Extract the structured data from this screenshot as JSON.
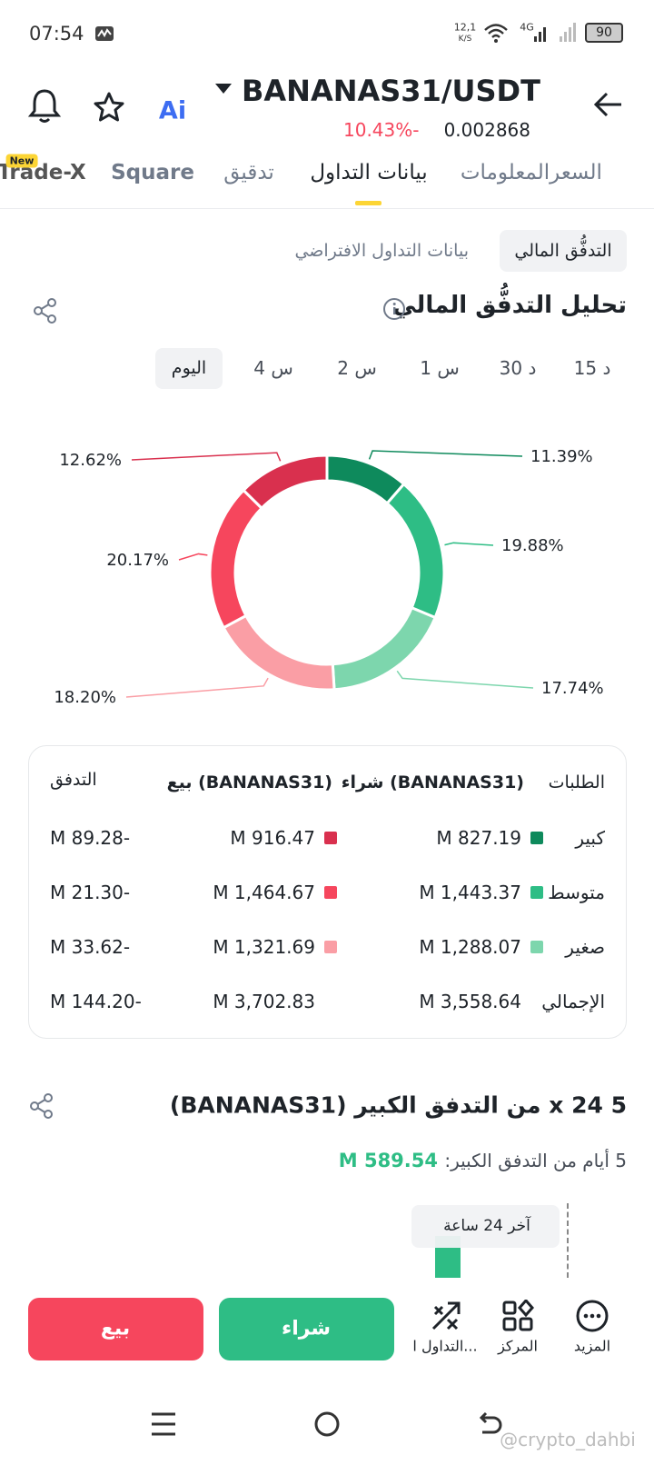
{
  "status_bar": {
    "time": "07:54",
    "speed": "12,1",
    "speed_unit": "K/S",
    "network": "4G",
    "battery": "90"
  },
  "header": {
    "title": "BANANAS31/USDT",
    "change": "10.43%-",
    "price": "0.002868",
    "ai": "Ai"
  },
  "tabs": [
    "السعر",
    "المعلومات",
    "بيانات التداول",
    "تدقيق",
    "Square",
    "Trade-X"
  ],
  "new_badge": "New",
  "sub_tabs": [
    "التدفُّق المالي",
    "بيانات التداول الافتراضي"
  ],
  "section_title": "تحليل التدفُّق المالي",
  "timeframes": [
    "15 د",
    "30 د",
    "1 س",
    "2 س",
    "4 س",
    "اليوم"
  ],
  "donut": {
    "values": [
      11.39,
      19.88,
      17.74,
      18.2,
      20.17,
      12.62
    ],
    "value_labels": [
      "11.39%",
      "19.88%",
      "17.74%",
      "18.20%",
      "20.17%",
      "12.62%"
    ],
    "colors": [
      "#0e8a5c",
      "#2ebd85",
      "#7dd6ad",
      "#fa9ea5",
      "#f6465d",
      "#d9304e"
    ]
  },
  "table": {
    "header": [
      "الطلبات",
      "شراء (BANANAS31)",
      "بيع (BANANAS31)",
      "التدفق"
    ],
    "rows": [
      [
        "كبير",
        "M 827.19",
        "M 916.47",
        "M 89.28-"
      ],
      [
        "متوسط",
        "M 1,443.37",
        "M 1,464.67",
        "M 21.30-"
      ],
      [
        "صغير",
        "M 1,288.07",
        "M 1,321.69",
        "M 33.62-"
      ],
      [
        "الإجمالي",
        "M 3,558.64",
        "M 3,702.83",
        "M 144.20-"
      ]
    ]
  },
  "section2_title": "5 x 24 من التدفق الكبير (BANANAS31)",
  "section2_subtitle": "5 أيام من التدفق الكبير:",
  "section2_value": "M 589.54",
  "tooltip": "آخر 24 ساعة",
  "actions": [
    "المزيد",
    "المركز",
    "التداول ا..."
  ],
  "buttons": {
    "buy": "شراء",
    "sell": "بيع"
  },
  "watermark": "@crypto_dahbi"
}
